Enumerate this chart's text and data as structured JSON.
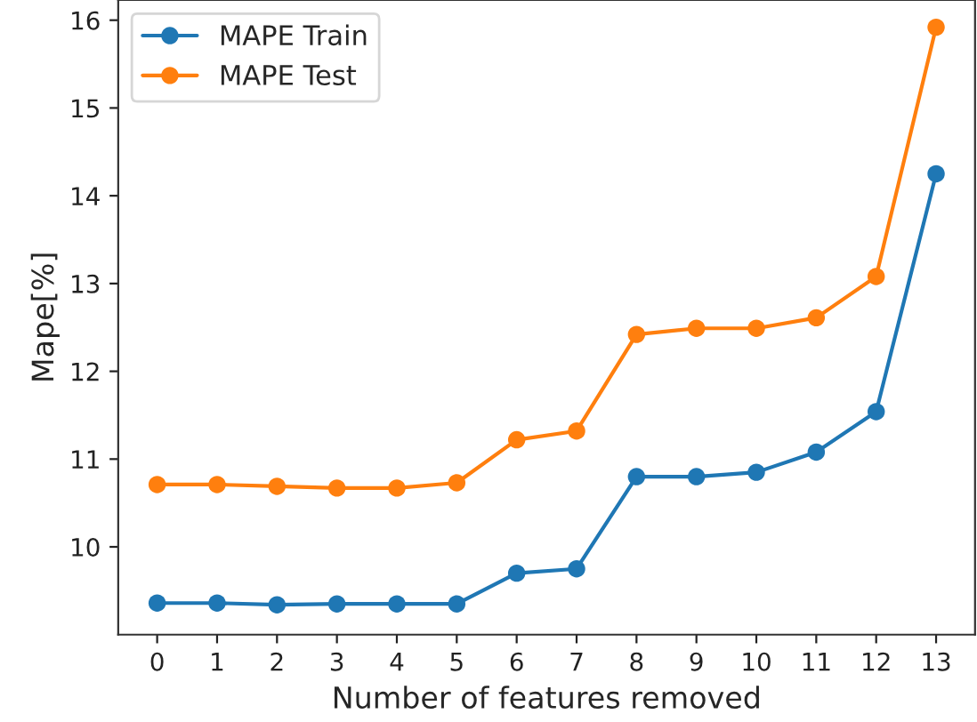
{
  "chart_data": {
    "type": "line",
    "xlabel": "Number of features removed",
    "ylabel": "Mape[%]",
    "x": [
      0,
      1,
      2,
      3,
      4,
      5,
      6,
      7,
      8,
      9,
      10,
      11,
      12,
      13
    ],
    "series": [
      {
        "name": "MAPE Train",
        "color": "#1f77b4",
        "values": [
          9.36,
          9.36,
          9.34,
          9.35,
          9.35,
          9.35,
          9.7,
          9.75,
          10.8,
          10.8,
          10.85,
          11.08,
          11.54,
          14.25
        ]
      },
      {
        "name": "MAPE Test",
        "color": "#ff7f0e",
        "values": [
          10.71,
          10.71,
          10.69,
          10.67,
          10.67,
          10.73,
          11.22,
          11.32,
          12.42,
          12.49,
          12.49,
          12.61,
          13.08,
          15.92
        ]
      }
    ],
    "xlim": [
      -0.65,
      13.65
    ],
    "ylim": [
      9.0,
      16.23
    ],
    "xticks": [
      0,
      1,
      2,
      3,
      4,
      5,
      6,
      7,
      8,
      9,
      10,
      11,
      12,
      13
    ],
    "yticks": [
      10,
      11,
      12,
      13,
      14,
      15,
      16
    ],
    "marker": "circle",
    "line_style": "solid",
    "legend": "top left",
    "grid": false
  }
}
